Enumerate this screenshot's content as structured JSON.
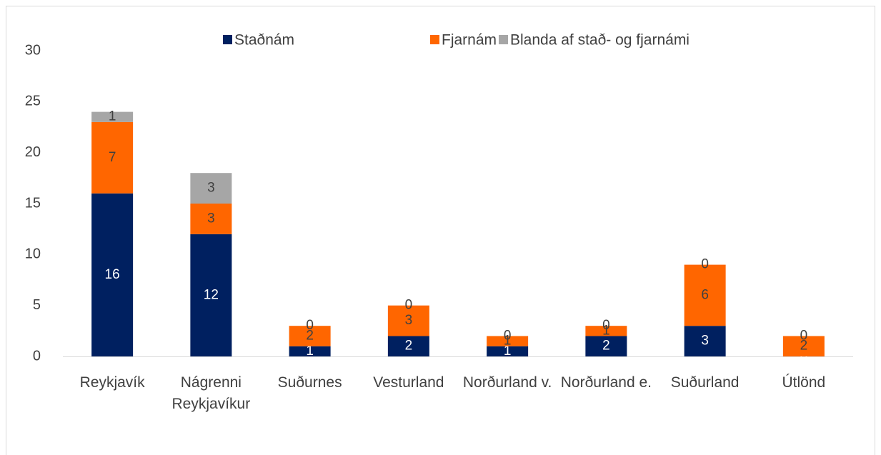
{
  "chart_data": {
    "type": "stacked_bar",
    "categories": [
      "Reykjavík",
      "Nágrenni Reykjavíkur",
      "Suðurnes",
      "Vesturland",
      "Norðurland v.",
      "Norðurland e.",
      "Suðurland",
      "Útlönd"
    ],
    "series": [
      {
        "name": "Staðnám",
        "color": "#002060",
        "values": [
          16,
          12,
          1,
          2,
          1,
          2,
          3,
          0
        ]
      },
      {
        "name": "Fjarnám",
        "color": "#ff6600",
        "values": [
          7,
          3,
          2,
          3,
          1,
          1,
          6,
          2
        ]
      },
      {
        "name": "Blanda af stað- og fjarnámi",
        "color": "#a6a6a6",
        "values": [
          1,
          3,
          0,
          0,
          0,
          0,
          0,
          0
        ]
      }
    ],
    "ylim": [
      0,
      30
    ],
    "yticks": [
      0,
      5,
      10,
      15,
      20,
      25,
      30
    ],
    "grid": false,
    "legend": "top"
  }
}
